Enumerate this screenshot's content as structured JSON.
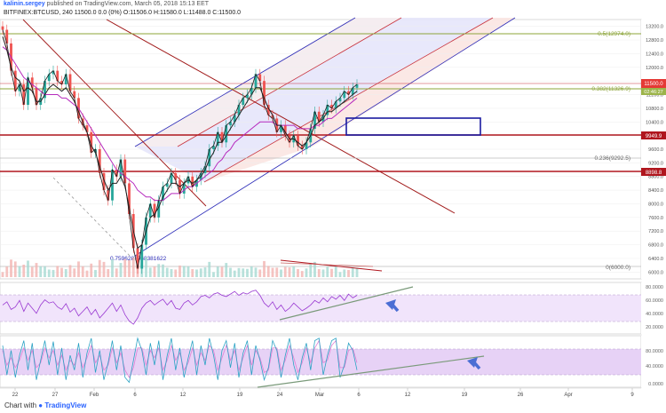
{
  "header": {
    "author": "kalinin.sergey",
    "published_text": "published on TradingView.com, March 05, 2018 15:13 EET",
    "symbol_line": "BITFINEX:BTCUSD, 240  11500.0 0.0 (0%)  O:11506.0  H:11580.0  L:11488.0  C:11500.0"
  },
  "footer": {
    "chart_with": "Chart with",
    "brand": "TradingView"
  },
  "colors": {
    "up": "#26a69a",
    "down": "#ef5350",
    "price": "#1e1e1e",
    "channel_blue": "#2b2bb8",
    "channel_red": "#c8323c",
    "horizontal_red": "#b0161e",
    "fib_green": "#8ca43a",
    "ma_purple": "#b62abd",
    "ma_black": "#222222",
    "rsi": "#9a3ad2",
    "stoch_k": "#2aa2c4",
    "stoch_d": "#e07fd4",
    "trend_grey": "#7a9a7a",
    "arrow": "#4a6ed4",
    "box": "#1a1aa0"
  },
  "price_scale": {
    "labels": [
      "13200.0",
      "12800.0",
      "12400.0",
      "12000.0",
      "11600.0",
      "11200.0",
      "10800.0",
      "10400.0",
      "10000.0",
      "9600.0",
      "9200.0",
      "8800.0",
      "8400.0",
      "8000.0",
      "7600.0",
      "7200.0",
      "6800.0",
      "6400.0",
      "6000.0"
    ],
    "current_price": "11500.0",
    "current_price_sub": "02:46:27",
    "levels": [
      "9949.9",
      "8898.8"
    ]
  },
  "fib_labels": {
    "f05": "0.5(12974.0)",
    "f0382": "0.382(11326.9)",
    "f0236": "0.236(9292.5)",
    "f0": "0(6000.0)",
    "f_low": "0.7596287968381622"
  },
  "rsi_scale": [
    "80.0000",
    "60.0000",
    "40.0000",
    "20.0000"
  ],
  "stoch_scale": [
    "80.0000",
    "40.0000",
    "0.0000"
  ],
  "time_axis": [
    "22",
    "27",
    "Feb",
    "6",
    "12",
    "19",
    "24",
    "Mar",
    "6",
    "12",
    "19",
    "26",
    "Apr",
    "9"
  ],
  "chart_data": {
    "type": "line",
    "title": "BITFINEX:BTCUSD, 240",
    "price_range": [
      5800,
      13400
    ],
    "close": [
      13100,
      12700,
      11900,
      11300,
      11500,
      10900,
      11700,
      11400,
      10900,
      11100,
      11600,
      11800,
      11900,
      11600,
      11500,
      11800,
      11300,
      11100,
      10500,
      10300,
      10100,
      9500,
      9600,
      8900,
      8400,
      8100,
      9000,
      8800,
      9300,
      8600,
      7700,
      6700,
      6100,
      6800,
      7600,
      8000,
      7600,
      8100,
      8500,
      8600,
      8900,
      8700,
      8300,
      8600,
      8800,
      8500,
      8700,
      8900,
      9100,
      9600,
      9700,
      10100,
      9800,
      10300,
      10400,
      10600,
      10900,
      11100,
      11200,
      11400,
      11800,
      11600,
      10900,
      10600,
      10500,
      10100,
      10300,
      10000,
      9800,
      10000,
      9700,
      9600,
      9800,
      10200,
      10700,
      10400,
      10600,
      10900,
      10800,
      11000,
      11100,
      11300,
      11200,
      11400,
      11500
    ],
    "ma_fast": [
      12900,
      12500,
      12000,
      11700,
      11600,
      11300,
      11400,
      11300,
      11000,
      11000,
      11200,
      11400,
      11500,
      11400,
      11300,
      11400,
      11200,
      11000,
      10700,
      10400,
      10100,
      9700,
      9500,
      9100,
      8700,
      8400,
      8600,
      8600,
      8800,
      8500,
      7900,
      7200,
      6700,
      6800,
      7200,
      7600,
      7700,
      7900,
      8200,
      8400,
      8600,
      8600,
      8500,
      8600,
      8700,
      8600,
      8700,
      8800,
      9000,
      9300,
      9500,
      9800,
      9800,
      10000,
      10200,
      10400,
      10600,
      10800,
      11000,
      11200,
      11400,
      11400,
      11100,
      10800,
      10600,
      10300,
      10300,
      10100,
      9900,
      9900,
      9800,
      9700,
      9800,
      10000,
      10300,
      10400,
      10500,
      10700,
      10700,
      10800,
      10900,
      11000,
      11100,
      11200,
      11300
    ],
    "ma_slow": [
      12600,
      12500,
      12300,
      12100,
      11900,
      11700,
      11600,
      11500,
      11400,
      11300,
      11200,
      11200,
      11200,
      11200,
      11100,
      11100,
      11000,
      10900,
      10800,
      10600,
      10400,
      10200,
      10000,
      9800,
      9600,
      9400,
      9200,
      9000,
      8900,
      8800,
      8700,
      8600,
      8400,
      8300,
      8200,
      8200,
      8100,
      8100,
      8100,
      8200,
      8300,
      8300,
      8300,
      8400,
      8500,
      8500,
      8600,
      8700,
      8800,
      8900,
      9000,
      9200,
      9300,
      9500,
      9600,
      9800,
      9900,
      10000,
      10100,
      10200,
      10300,
      10400,
      10400,
      10400,
      10400,
      10300,
      10300,
      10300,
      10300,
      10300,
      10200,
      10200,
      10200,
      10200,
      10300,
      10300,
      10400,
      10500,
      10500,
      10600,
      10700,
      10800,
      10900,
      11000,
      11100
    ],
    "rsi_range": [
      10,
      90
    ],
    "rsi": [
      55,
      60,
      48,
      52,
      62,
      45,
      58,
      50,
      42,
      55,
      63,
      58,
      60,
      52,
      48,
      57,
      44,
      50,
      38,
      45,
      52,
      40,
      48,
      35,
      42,
      50,
      58,
      45,
      55,
      40,
      30,
      25,
      35,
      50,
      58,
      62,
      55,
      60,
      64,
      55,
      62,
      50,
      48,
      58,
      62,
      55,
      60,
      68,
      70,
      66,
      72,
      74,
      70,
      68,
      72,
      76,
      70,
      74,
      72,
      76,
      78,
      70,
      58,
      52,
      60,
      48,
      55,
      45,
      50,
      58,
      52,
      46,
      50,
      55,
      62,
      58,
      66,
      60,
      68,
      64,
      70,
      62,
      72,
      66,
      70
    ],
    "stoch_range": [
      -5,
      100
    ],
    "stoch_k": [
      80,
      20,
      70,
      15,
      60,
      90,
      30,
      85,
      10,
      50,
      90,
      40,
      88,
      20,
      75,
      10,
      60,
      30,
      85,
      15,
      65,
      95,
      25,
      70,
      10,
      45,
      90,
      30,
      80,
      15,
      5,
      50,
      95,
      70,
      20,
      85,
      40,
      90,
      10,
      60,
      95,
      30,
      75,
      15,
      55,
      90,
      20,
      80,
      40,
      95,
      60,
      10,
      70,
      90,
      35,
      85,
      15,
      65,
      90,
      20,
      80,
      50,
      10,
      35,
      90,
      70,
      15,
      60,
      95,
      40,
      10,
      55,
      85,
      30,
      90,
      95,
      20,
      60,
      90,
      95,
      15,
      40,
      85,
      70,
      30
    ],
    "stoch_d": [
      70,
      40,
      55,
      35,
      50,
      75,
      50,
      70,
      35,
      45,
      75,
      55,
      70,
      40,
      60,
      30,
      50,
      40,
      65,
      35,
      55,
      80,
      45,
      60,
      30,
      40,
      75,
      45,
      65,
      30,
      15,
      35,
      75,
      75,
      40,
      70,
      55,
      75,
      30,
      50,
      80,
      50,
      65,
      30,
      45,
      75,
      40,
      65,
      50,
      80,
      70,
      30,
      55,
      80,
      50,
      70,
      30,
      55,
      80,
      40,
      70,
      55,
      25,
      30,
      75,
      75,
      30,
      50,
      80,
      55,
      25,
      45,
      75,
      45,
      75,
      90,
      45,
      50,
      80,
      90,
      35,
      35,
      70,
      75,
      45
    ]
  }
}
